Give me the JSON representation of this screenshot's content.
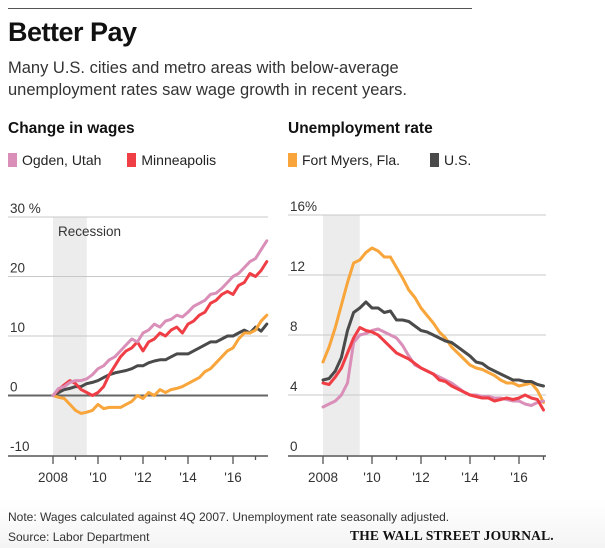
{
  "header": {
    "title": "Better Pay",
    "subtitle": "Many U.S. cities and metro areas with below-average unemployment rates saw wage growth in recent years."
  },
  "colors": {
    "ogden": "#d98fb8",
    "minneapolis": "#ef3e45",
    "fort_myers": "#f8a53b",
    "us": "#4a4a4a",
    "recession": "#ececec",
    "grid": "#c8c8c8",
    "axis": "#555555"
  },
  "footer": {
    "note": "Note: Wages calculated against 4Q 2007. Unemployment rate seasonally adjusted.",
    "source": "Source: Labor Department",
    "logo": "THE WALL STREET JOURNAL."
  },
  "chart_data": [
    {
      "type": "line",
      "title": "Change in wages",
      "xlabel": "",
      "ylabel": "",
      "ylim": [
        -10,
        30
      ],
      "xlim": [
        2008,
        2017.6
      ],
      "yticks": [
        -10,
        0,
        10,
        20,
        30
      ],
      "ytick_labels": [
        "-10",
        "0",
        "10",
        "20",
        "30 %"
      ],
      "xticks": [
        2008,
        2010,
        2012,
        2014,
        2016
      ],
      "xtick_labels": [
        "2008",
        "'10",
        "'12",
        "'14",
        "'16"
      ],
      "minor_xticks": [
        2009,
        2011,
        2013,
        2015,
        2017
      ],
      "grid": true,
      "annotation": {
        "text": "Recession",
        "band": [
          2008,
          2009.5
        ]
      },
      "legend": [
        {
          "name": "Ogden, Utah",
          "color_key": "ogden"
        },
        {
          "name": "Minneapolis",
          "color_key": "minneapolis"
        }
      ],
      "legend_placement": "top-left",
      "series": [
        {
          "name": "Ogden, Utah",
          "color_key": "ogden",
          "x": [
            2008,
            2008.25,
            2008.5,
            2008.75,
            2009,
            2009.25,
            2009.5,
            2009.75,
            2010,
            2010.25,
            2010.5,
            2010.75,
            2011,
            2011.25,
            2011.5,
            2011.75,
            2012,
            2012.25,
            2012.5,
            2012.75,
            2013,
            2013.25,
            2013.5,
            2013.75,
            2014,
            2014.25,
            2014.5,
            2014.75,
            2015,
            2015.25,
            2015.5,
            2015.75,
            2016,
            2016.25,
            2016.5,
            2016.75,
            2017,
            2017.25,
            2017.5
          ],
          "values": [
            0,
            1.2,
            1.5,
            2.2,
            2.5,
            2.5,
            2.8,
            3.5,
            4.5,
            5.0,
            6.0,
            6.5,
            7.5,
            8.5,
            9.5,
            9.0,
            10.5,
            11.0,
            12.0,
            11.5,
            12.5,
            12.8,
            13.5,
            13.2,
            14.0,
            15.0,
            15.5,
            16.0,
            17.0,
            17.2,
            18.0,
            19.0,
            20.0,
            20.5,
            21.5,
            22.5,
            23.0,
            24.5,
            26.0
          ]
        },
        {
          "name": "Minneapolis",
          "color_key": "minneapolis",
          "x": [
            2008,
            2008.25,
            2008.5,
            2008.75,
            2009,
            2009.25,
            2009.5,
            2009.75,
            2010,
            2010.25,
            2010.5,
            2010.75,
            2011,
            2011.25,
            2011.5,
            2011.75,
            2012,
            2012.25,
            2012.5,
            2012.75,
            2013,
            2013.25,
            2013.5,
            2013.75,
            2014,
            2014.25,
            2014.5,
            2014.75,
            2015,
            2015.25,
            2015.5,
            2015.75,
            2016,
            2016.25,
            2016.5,
            2016.75,
            2017,
            2017.25,
            2017.5
          ],
          "values": [
            0,
            1.0,
            1.8,
            2.5,
            2.0,
            1.0,
            0.5,
            0.0,
            0.5,
            1.5,
            3.5,
            5.0,
            6.5,
            7.5,
            8.0,
            9.0,
            7.5,
            9.0,
            9.5,
            10.5,
            10.0,
            11.0,
            11.5,
            10.5,
            12.0,
            12.5,
            13.5,
            14.0,
            15.5,
            16.0,
            17.0,
            17.5,
            17.0,
            18.5,
            19.0,
            20.5,
            20.0,
            21.0,
            22.5
          ]
        },
        {
          "name": "Fort Myers, Fla.",
          "color_key": "fort_myers",
          "x": [
            2008,
            2008.25,
            2008.5,
            2008.75,
            2009,
            2009.25,
            2009.5,
            2009.75,
            2010,
            2010.25,
            2010.5,
            2010.75,
            2011,
            2011.25,
            2011.5,
            2011.75,
            2012,
            2012.25,
            2012.5,
            2012.75,
            2013,
            2013.25,
            2013.5,
            2013.75,
            2014,
            2014.25,
            2014.5,
            2014.75,
            2015,
            2015.25,
            2015.5,
            2015.75,
            2016,
            2016.25,
            2016.5,
            2016.75,
            2017,
            2017.25,
            2017.5
          ],
          "values": [
            0,
            -0.3,
            -0.5,
            -1.5,
            -2.5,
            -3.0,
            -2.8,
            -2.5,
            -1.5,
            -2.2,
            -2.0,
            -2.0,
            -2.0,
            -1.5,
            -1.0,
            0.0,
            -0.5,
            0.5,
            0.0,
            1.0,
            0.5,
            1.0,
            1.2,
            1.5,
            2.0,
            2.5,
            3.0,
            4.0,
            4.5,
            5.5,
            6.5,
            7.5,
            8.0,
            9.5,
            10.5,
            10.5,
            11.0,
            12.5,
            13.5
          ]
        },
        {
          "name": "U.S.",
          "color_key": "us",
          "x": [
            2008,
            2008.25,
            2008.5,
            2008.75,
            2009,
            2009.25,
            2009.5,
            2009.75,
            2010,
            2010.25,
            2010.5,
            2010.75,
            2011,
            2011.25,
            2011.5,
            2011.75,
            2012,
            2012.25,
            2012.5,
            2012.75,
            2013,
            2013.25,
            2013.5,
            2013.75,
            2014,
            2014.25,
            2014.5,
            2014.75,
            2015,
            2015.25,
            2015.5,
            2015.75,
            2016,
            2016.25,
            2016.5,
            2016.75,
            2017,
            2017.25,
            2017.5
          ],
          "values": [
            0,
            0.5,
            1.0,
            1.2,
            1.5,
            1.5,
            2.0,
            2.2,
            2.5,
            3.0,
            3.5,
            3.8,
            4.0,
            4.2,
            4.5,
            5.0,
            5.0,
            5.5,
            5.8,
            6.0,
            6.0,
            6.5,
            7.0,
            7.0,
            7.0,
            7.5,
            8.0,
            8.5,
            9.0,
            9.0,
            9.5,
            10.0,
            10.0,
            10.5,
            11.0,
            10.5,
            11.5,
            10.8,
            12.0
          ]
        }
      ]
    },
    {
      "type": "line",
      "title": "Unemployment rate",
      "xlabel": "",
      "ylabel": "",
      "ylim": [
        0,
        16
      ],
      "xlim": [
        2008,
        2017
      ],
      "yticks": [
        0,
        4,
        8,
        12,
        16
      ],
      "ytick_labels": [
        "0",
        "4",
        "8",
        "12",
        "16%"
      ],
      "xticks": [
        2008,
        2010,
        2012,
        2014,
        2016
      ],
      "xtick_labels": [
        "2008",
        "'10",
        "'12",
        "'14",
        "'16"
      ],
      "minor_xticks": [
        2009,
        2011,
        2013,
        2015,
        2017
      ],
      "grid": true,
      "annotation": {
        "text": "",
        "band": [
          2008,
          2009.5
        ]
      },
      "legend": [
        {
          "name": "Fort Myers, Fla.",
          "color_key": "fort_myers"
        },
        {
          "name": "U.S.",
          "color_key": "us"
        }
      ],
      "legend_placement": "top-left",
      "series": [
        {
          "name": "Fort Myers, Fla.",
          "color_key": "fort_myers",
          "x": [
            2008,
            2008.25,
            2008.5,
            2008.75,
            2009,
            2009.25,
            2009.5,
            2009.75,
            2010,
            2010.25,
            2010.5,
            2010.75,
            2011,
            2011.25,
            2011.5,
            2011.75,
            2012,
            2012.25,
            2012.5,
            2012.75,
            2013,
            2013.25,
            2013.5,
            2013.75,
            2014,
            2014.25,
            2014.5,
            2014.75,
            2015,
            2015.25,
            2015.5,
            2015.75,
            2016,
            2016.25,
            2016.5,
            2016.75,
            2017
          ],
          "values": [
            6.2,
            7.2,
            8.5,
            10.0,
            11.5,
            12.8,
            13.0,
            13.5,
            13.8,
            13.6,
            13.2,
            13.2,
            12.5,
            11.8,
            11.0,
            10.5,
            9.8,
            9.3,
            8.8,
            8.2,
            7.8,
            7.2,
            6.8,
            6.4,
            6.0,
            5.8,
            5.7,
            5.5,
            5.3,
            5.0,
            4.8,
            4.8,
            4.6,
            4.7,
            4.8,
            4.3,
            3.5
          ]
        },
        {
          "name": "U.S.",
          "color_key": "us",
          "x": [
            2008,
            2008.25,
            2008.5,
            2008.75,
            2009,
            2009.25,
            2009.5,
            2009.75,
            2010,
            2010.25,
            2010.5,
            2010.75,
            2011,
            2011.25,
            2011.5,
            2011.75,
            2012,
            2012.25,
            2012.5,
            2012.75,
            2013,
            2013.25,
            2013.5,
            2013.75,
            2014,
            2014.25,
            2014.5,
            2014.75,
            2015,
            2015.25,
            2015.5,
            2015.75,
            2016,
            2016.25,
            2016.5,
            2016.75,
            2017
          ],
          "values": [
            5.0,
            5.1,
            5.6,
            6.5,
            8.3,
            9.5,
            9.8,
            10.2,
            9.8,
            9.8,
            9.5,
            9.6,
            9.0,
            9.0,
            8.9,
            8.6,
            8.3,
            8.2,
            8.0,
            7.8,
            7.6,
            7.5,
            7.2,
            6.9,
            6.6,
            6.2,
            6.1,
            5.8,
            5.6,
            5.4,
            5.2,
            5.0,
            5.0,
            4.9,
            4.9,
            4.7,
            4.6
          ]
        },
        {
          "name": "Ogden, Utah",
          "color_key": "ogden",
          "x": [
            2008,
            2008.25,
            2008.5,
            2008.75,
            2009,
            2009.25,
            2009.5,
            2009.75,
            2010,
            2010.25,
            2010.5,
            2010.75,
            2011,
            2011.25,
            2011.5,
            2011.75,
            2012,
            2012.25,
            2012.5,
            2012.75,
            2013,
            2013.25,
            2013.5,
            2013.75,
            2014,
            2014.25,
            2014.5,
            2014.75,
            2015,
            2015.25,
            2015.5,
            2015.75,
            2016,
            2016.25,
            2016.5,
            2016.75,
            2017
          ],
          "values": [
            3.2,
            3.4,
            3.6,
            4.0,
            4.8,
            7.5,
            8.0,
            8.1,
            8.3,
            8.4,
            8.2,
            8.0,
            7.8,
            7.3,
            6.6,
            6.0,
            5.8,
            5.6,
            5.4,
            5.2,
            5.0,
            4.8,
            4.5,
            4.2,
            4.0,
            4.0,
            3.9,
            3.9,
            3.8,
            3.8,
            3.7,
            3.6,
            3.6,
            3.4,
            3.3,
            3.5,
            3.6
          ]
        },
        {
          "name": "Minneapolis",
          "color_key": "minneapolis",
          "x": [
            2008,
            2008.25,
            2008.5,
            2008.75,
            2009,
            2009.25,
            2009.5,
            2009.75,
            2010,
            2010.25,
            2010.5,
            2010.75,
            2011,
            2011.25,
            2011.5,
            2011.75,
            2012,
            2012.25,
            2012.5,
            2012.75,
            2013,
            2013.25,
            2013.5,
            2013.75,
            2014,
            2014.25,
            2014.5,
            2014.75,
            2015,
            2015.25,
            2015.5,
            2015.75,
            2016,
            2016.25,
            2016.5,
            2016.75,
            2017
          ],
          "values": [
            4.8,
            4.7,
            5.2,
            5.8,
            6.8,
            7.8,
            8.5,
            8.3,
            8.2,
            8.0,
            7.6,
            7.2,
            6.8,
            6.6,
            6.4,
            6.1,
            5.8,
            5.6,
            5.4,
            5.0,
            4.9,
            4.6,
            4.4,
            4.2,
            4.0,
            3.9,
            3.8,
            3.8,
            3.6,
            3.7,
            3.8,
            3.7,
            3.8,
            4.0,
            3.8,
            3.7,
            3.0
          ]
        }
      ]
    }
  ]
}
